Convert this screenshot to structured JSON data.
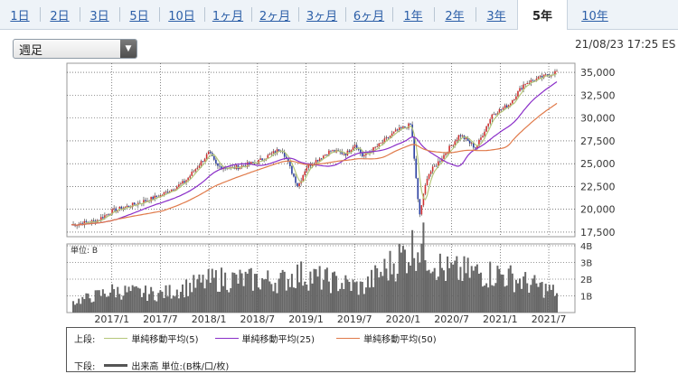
{
  "tabs": [
    {
      "label": "1日"
    },
    {
      "label": "2日"
    },
    {
      "label": "3日"
    },
    {
      "label": "5日"
    },
    {
      "label": "10日"
    },
    {
      "label": "1ヶ月"
    },
    {
      "label": "2ヶ月"
    },
    {
      "label": "3ヶ月"
    },
    {
      "label": "6ヶ月"
    },
    {
      "label": "1年"
    },
    {
      "label": "2年"
    },
    {
      "label": "3年"
    },
    {
      "label": "5年",
      "active": true
    },
    {
      "label": "10年"
    }
  ],
  "period_select": {
    "value": "週足"
  },
  "timestamp": "21/08/23 17:25 ES",
  "legend": {
    "upper_label": "上段:",
    "lower_label": "下段:",
    "ma5": "単純移動平均(5)",
    "ma25": "単純移動平均(25)",
    "ma50": "単純移動平均(50)",
    "volume": "出来高 単位:(B株/口/枚)"
  },
  "chart_data": [
    {
      "type": "candlestick",
      "interval": "weekly",
      "x_range": [
        "2016-08",
        "2021-08"
      ],
      "xticks": [
        "2017/1",
        "2017/7",
        "2018/1",
        "2018/7",
        "2019/1",
        "2019/7",
        "2020/1",
        "2020/7",
        "2021/1",
        "2021/7"
      ],
      "ylim": [
        17000,
        36000
      ],
      "yticks": [
        17500,
        20000,
        22500,
        25000,
        27500,
        30000,
        32500,
        35000
      ],
      "grid": true,
      "close_approx": [
        {
          "x": "2016-08",
          "y": 18300
        },
        {
          "x": "2016-11",
          "y": 18700
        },
        {
          "x": "2017-01",
          "y": 19800
        },
        {
          "x": "2017-04",
          "y": 20600
        },
        {
          "x": "2017-07",
          "y": 21500
        },
        {
          "x": "2017-10",
          "y": 23000
        },
        {
          "x": "2018-01",
          "y": 26200
        },
        {
          "x": "2018-02",
          "y": 24700
        },
        {
          "x": "2018-04",
          "y": 24500
        },
        {
          "x": "2018-07",
          "y": 25200
        },
        {
          "x": "2018-10",
          "y": 26700
        },
        {
          "x": "2018-12",
          "y": 22500
        },
        {
          "x": "2019-01",
          "y": 24600
        },
        {
          "x": "2019-04",
          "y": 26400
        },
        {
          "x": "2019-06",
          "y": 26100
        },
        {
          "x": "2019-07",
          "y": 27200
        },
        {
          "x": "2019-08",
          "y": 25800
        },
        {
          "x": "2019-10",
          "y": 27000
        },
        {
          "x": "2019-12",
          "y": 28500
        },
        {
          "x": "2020-02",
          "y": 29300
        },
        {
          "x": "2020-03",
          "y": 19200
        },
        {
          "x": "2020-04",
          "y": 23700
        },
        {
          "x": "2020-06",
          "y": 25900
        },
        {
          "x": "2020-08",
          "y": 28200
        },
        {
          "x": "2020-10",
          "y": 26700
        },
        {
          "x": "2020-12",
          "y": 30400
        },
        {
          "x": "2021-02",
          "y": 31400
        },
        {
          "x": "2021-04",
          "y": 33800
        },
        {
          "x": "2021-06",
          "y": 34400
        },
        {
          "x": "2021-08",
          "y": 35100
        }
      ],
      "series": [
        {
          "name": "単純移動平均(5)",
          "color": "#b5c77a"
        },
        {
          "name": "単純移動平均(25)",
          "color": "#8a2ec8"
        },
        {
          "name": "単純移動平均(50)",
          "color": "#e07a4a"
        }
      ]
    },
    {
      "type": "bar",
      "label": "単位: B",
      "unit": "B",
      "ylim": [
        0,
        4
      ],
      "yticks": [
        "1B",
        "2B",
        "3B",
        "4B"
      ],
      "volume_approx": [
        {
          "x": "2016-08",
          "y": 0.6
        },
        {
          "x": "2016-11",
          "y": 1.0
        },
        {
          "x": "2017-01",
          "y": 1.3
        },
        {
          "x": "2017-07",
          "y": 1.1
        },
        {
          "x": "2018-02",
          "y": 2.0
        },
        {
          "x": "2018-10",
          "y": 1.9
        },
        {
          "x": "2018-12",
          "y": 2.3
        },
        {
          "x": "2019-08",
          "y": 1.5
        },
        {
          "x": "2020-03",
          "y": 4.2
        },
        {
          "x": "2020-06",
          "y": 2.5
        },
        {
          "x": "2021-01",
          "y": 2.3
        },
        {
          "x": "2021-08",
          "y": 1.2
        }
      ],
      "color": "#666666"
    }
  ]
}
